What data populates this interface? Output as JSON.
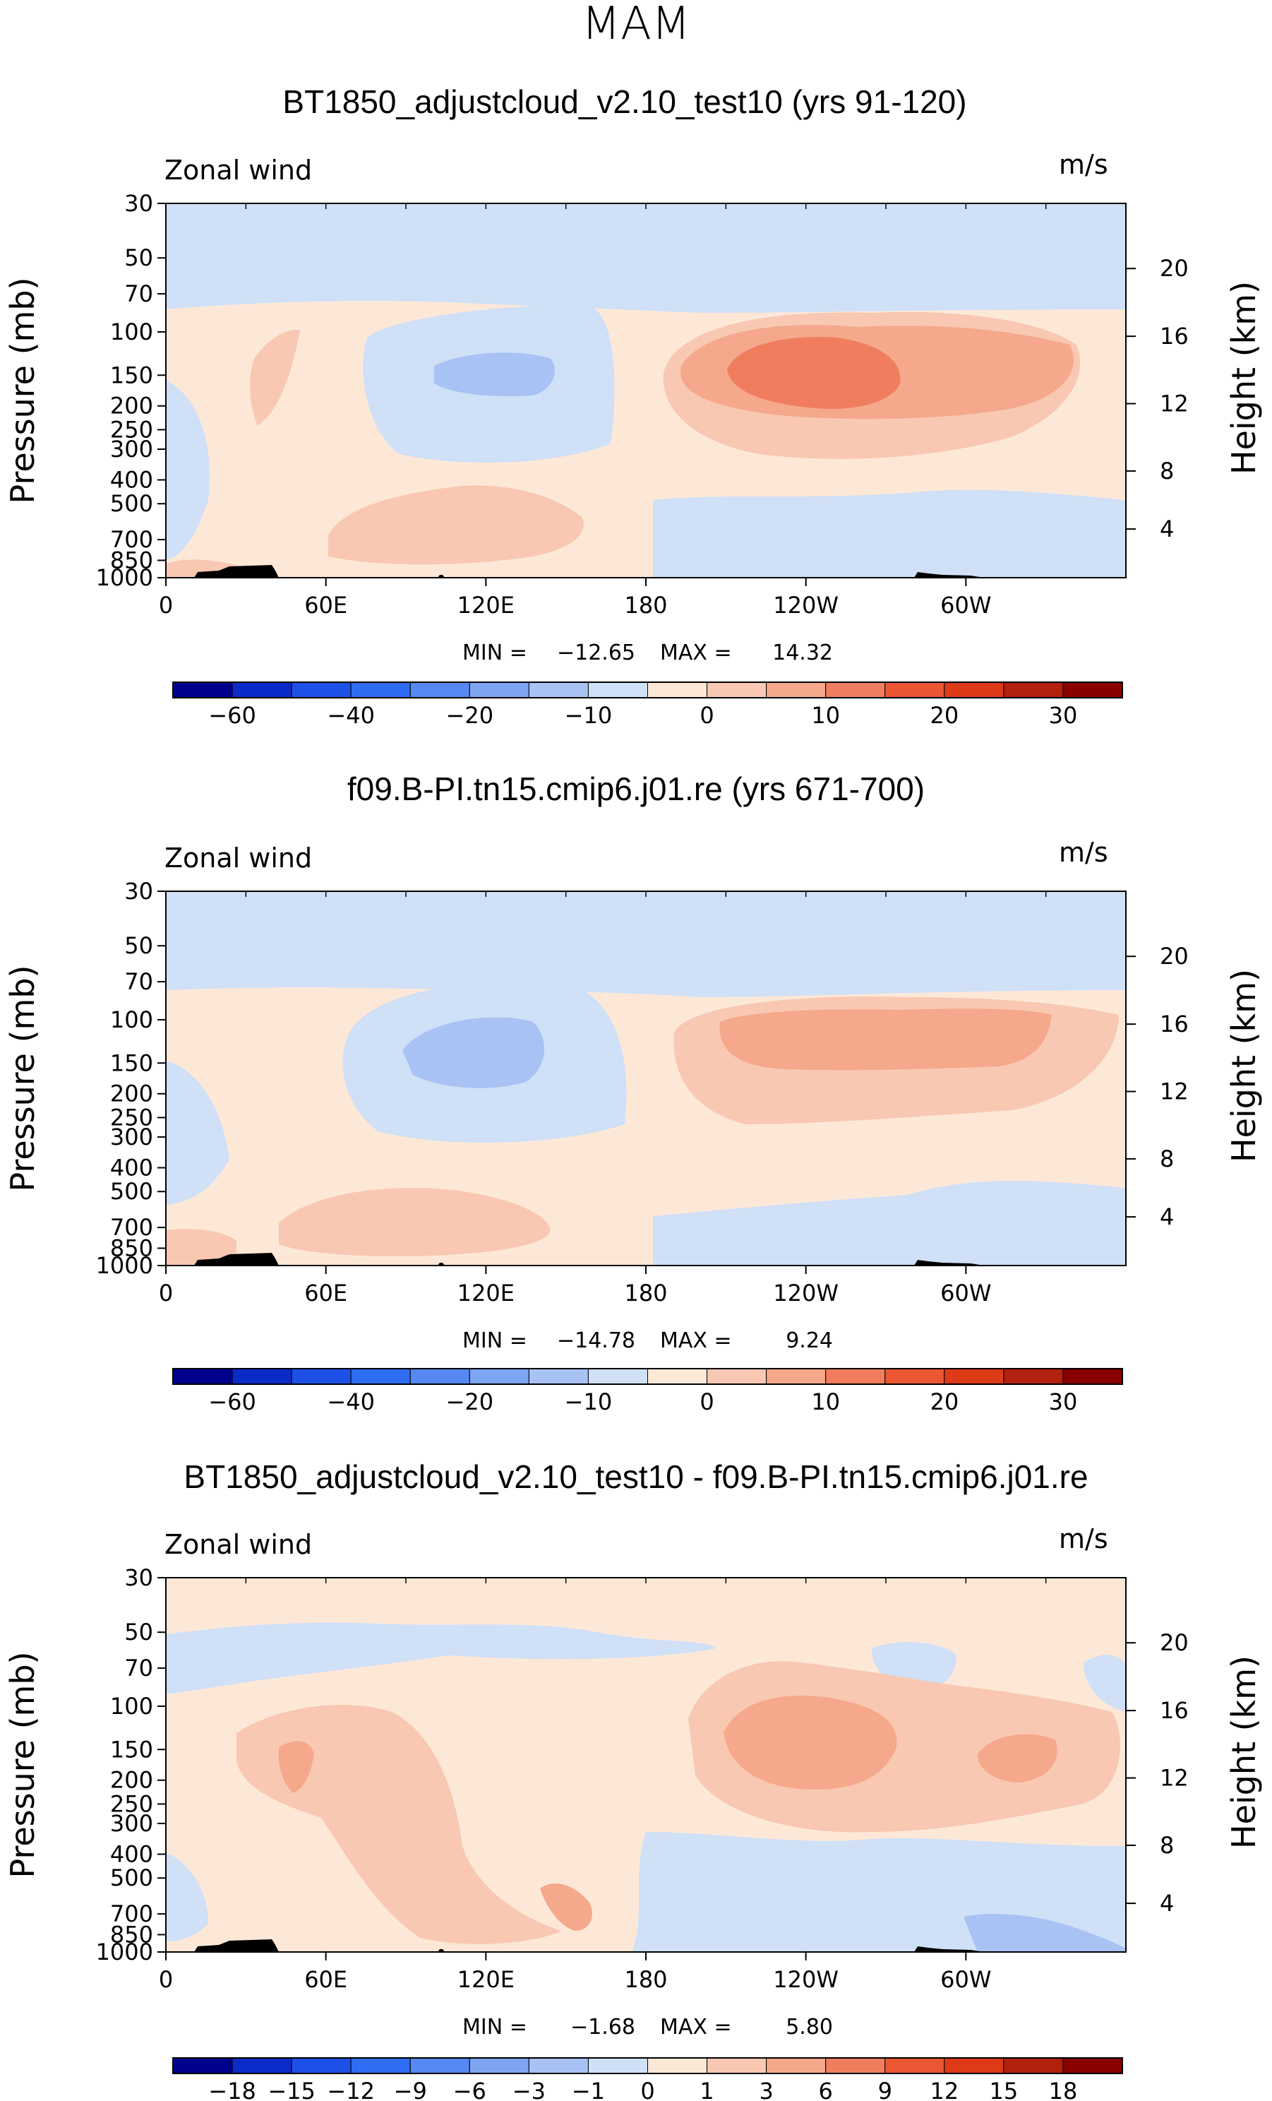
{
  "page_title": "MAM",
  "chart_data": [
    {
      "type": "contour",
      "title": "BT1850_adjustcloud_v2.10_test10 (yrs 91-120)",
      "variable_label": "Zonal wind",
      "units_label": "m/s",
      "ylabel": "Pressure (mb)",
      "y2label": "Height (km)",
      "x_ticks": [
        "0",
        "60E",
        "120E",
        "180",
        "120W",
        "60W"
      ],
      "y_ticks": [
        "30",
        "50",
        "70",
        "100",
        "150",
        "200",
        "250",
        "300",
        "400",
        "500",
        "700",
        "850",
        "1000"
      ],
      "y2_ticks": [
        "20",
        "16",
        "12",
        "8",
        "4"
      ],
      "stats": {
        "min_label": "MIN =",
        "min": "−12.65",
        "max_label": "MAX =",
        "max": "14.32"
      },
      "colorbar_labels": [
        "−60",
        "−40",
        "−20",
        "−10",
        "0",
        "10",
        "20",
        "30"
      ],
      "colors": [
        "#00008c",
        "#0b2bc8",
        "#1d50e6",
        "#2e6cf2",
        "#5588f0",
        "#7ea5f2",
        "#a8c2f4",
        "#cfe0f7",
        "#fde8d8",
        "#f9c8b2",
        "#f5a88c",
        "#f07e5e",
        "#ea5732",
        "#dd3a18",
        "#b2200e",
        "#880000"
      ]
    },
    {
      "type": "contour",
      "title": "f09.B-PI.tn15.cmip6.j01.re (yrs 671-700)",
      "variable_label": "Zonal wind",
      "units_label": "m/s",
      "ylabel": "Pressure (mb)",
      "y2label": "Height (km)",
      "x_ticks": [
        "0",
        "60E",
        "120E",
        "180",
        "120W",
        "60W"
      ],
      "y_ticks": [
        "30",
        "50",
        "70",
        "100",
        "150",
        "200",
        "250",
        "300",
        "400",
        "500",
        "700",
        "850",
        "1000"
      ],
      "y2_ticks": [
        "20",
        "16",
        "12",
        "8",
        "4"
      ],
      "stats": {
        "min_label": "MIN =",
        "min": "−14.78",
        "max_label": "MAX =",
        "max": "9.24"
      },
      "colorbar_labels": [
        "−60",
        "−40",
        "−20",
        "−10",
        "0",
        "10",
        "20",
        "30"
      ],
      "colors": [
        "#00008c",
        "#0b2bc8",
        "#1d50e6",
        "#2e6cf2",
        "#5588f0",
        "#7ea5f2",
        "#a8c2f4",
        "#cfe0f7",
        "#fde8d8",
        "#f9c8b2",
        "#f5a88c",
        "#f07e5e",
        "#ea5732",
        "#dd3a18",
        "#b2200e",
        "#880000"
      ]
    },
    {
      "type": "contour",
      "title": "BT1850_adjustcloud_v2.10_test10 - f09.B-PI.tn15.cmip6.j01.re",
      "variable_label": "Zonal wind",
      "units_label": "m/s",
      "ylabel": "Pressure (mb)",
      "y2label": "Height (km)",
      "x_ticks": [
        "0",
        "60E",
        "120E",
        "180",
        "120W",
        "60W"
      ],
      "y_ticks": [
        "30",
        "50",
        "70",
        "100",
        "150",
        "200",
        "250",
        "300",
        "400",
        "500",
        "700",
        "850",
        "1000"
      ],
      "y2_ticks": [
        "20",
        "16",
        "12",
        "8",
        "4"
      ],
      "stats": {
        "min_label": "MIN =",
        "min": "−1.68",
        "max_label": "MAX =",
        "max": "5.80"
      },
      "colorbar_labels": [
        "−18",
        "−15",
        "−12",
        "−9",
        "−6",
        "−3",
        "−1",
        "0",
        "1",
        "3",
        "6",
        "9",
        "12",
        "15",
        "18"
      ],
      "colors": [
        "#00008c",
        "#0b2bc8",
        "#1d50e6",
        "#2e6cf2",
        "#5588f0",
        "#7ea5f2",
        "#a8c2f4",
        "#cfe0f7",
        "#fde8d8",
        "#f9c8b2",
        "#f5a88c",
        "#f07e5e",
        "#ea5732",
        "#dd3a18",
        "#b2200e",
        "#880000"
      ]
    }
  ]
}
